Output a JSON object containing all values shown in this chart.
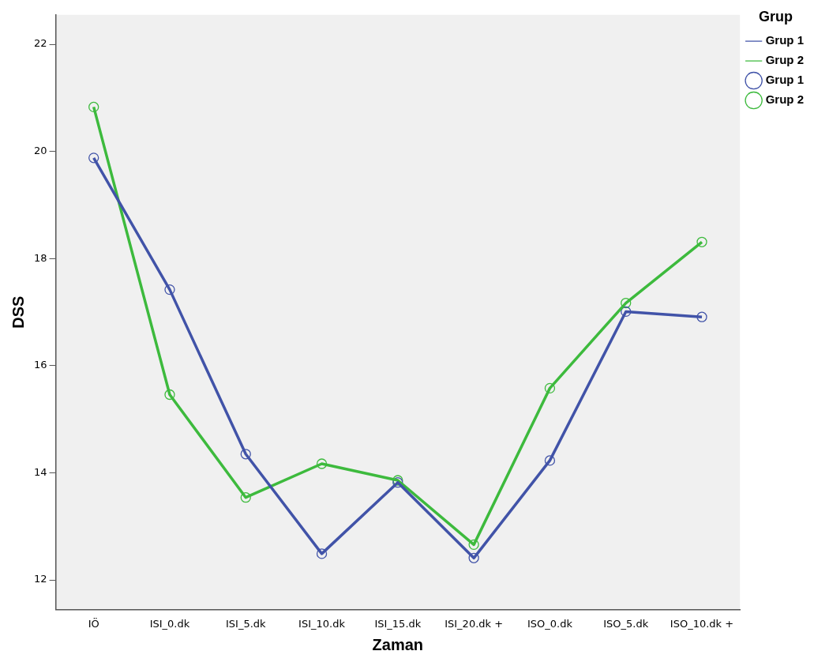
{
  "chart_data": {
    "type": "line",
    "xlabel": "Zaman",
    "ylabel": "DSS",
    "legend_title": "Grup",
    "legend": "top right",
    "grid": false,
    "categories": [
      "IÖ",
      "ISI_0.dk",
      "ISI_5.dk",
      "ISI_10.dk",
      "ISI_15.dk",
      "ISI_20.dk +",
      "ISO_0.dk",
      "ISO_5.dk",
      "ISO_10.dk +"
    ],
    "ylim": [
      11.45,
      22.55
    ],
    "yticks": [
      12,
      14,
      16,
      18,
      20,
      22
    ],
    "series": [
      {
        "name": "Grup 1",
        "type": "line",
        "marker": "none",
        "color": "#4153a8",
        "values": [
          19.88,
          17.42,
          14.35,
          12.49,
          13.82,
          12.41,
          14.23,
          17.01,
          16.91
        ]
      },
      {
        "name": "Grup 2",
        "type": "line",
        "marker": "none",
        "color": "#3dba3d",
        "values": [
          20.83,
          15.46,
          13.54,
          14.17,
          13.86,
          12.66,
          15.58,
          17.17,
          18.31
        ]
      },
      {
        "name": "Grup 1",
        "type": "scatter",
        "marker": "circle",
        "color": "#4153a8",
        "values": [
          19.88,
          17.42,
          14.35,
          12.49,
          13.82,
          12.41,
          14.23,
          17.01,
          16.91
        ]
      },
      {
        "name": "Grup 2",
        "type": "scatter",
        "marker": "circle",
        "color": "#3dba3d",
        "values": [
          20.83,
          15.46,
          13.54,
          14.17,
          13.86,
          12.66,
          15.58,
          17.17,
          18.31
        ]
      }
    ]
  }
}
